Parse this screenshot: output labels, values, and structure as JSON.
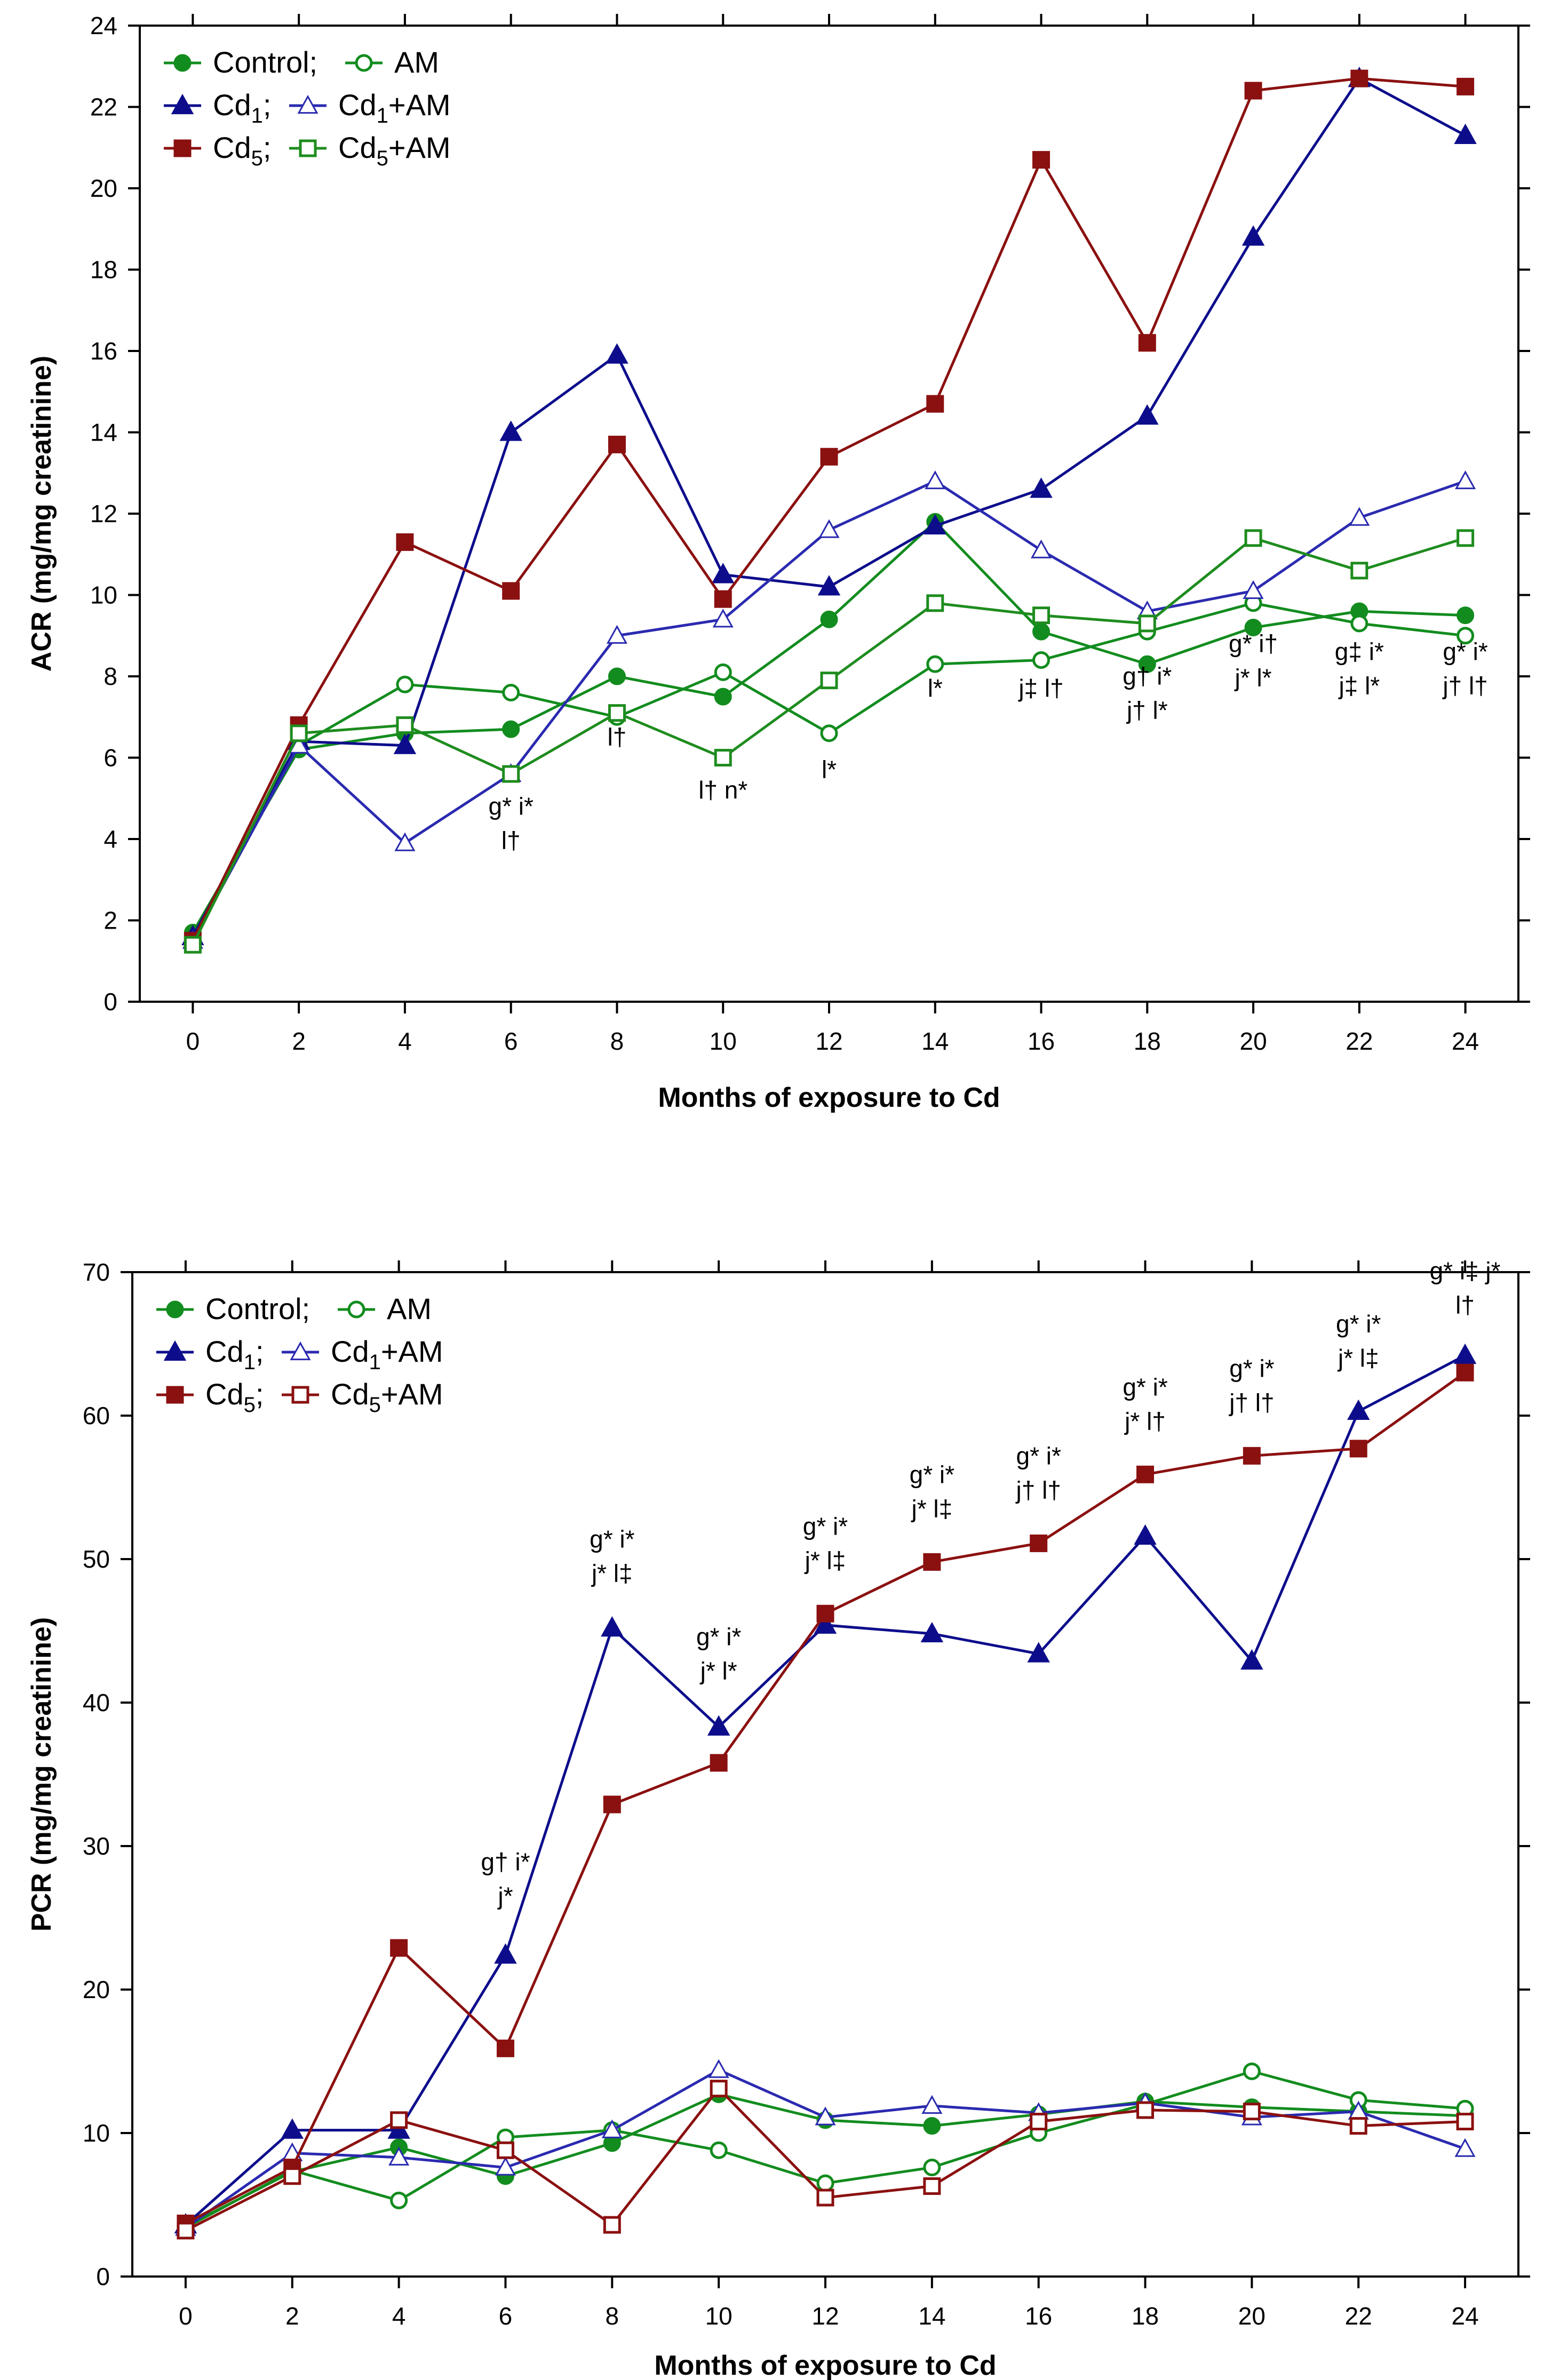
{
  "colors": {
    "control": "#128c1e",
    "am": "#128c1e",
    "cd1": "#0d0d8c",
    "cd1am": "#2a2ab0",
    "cd5": "#8b1010",
    "cd5am_top": "#1e8c1e",
    "cd5am_bottom": "#8b1010"
  },
  "chart_data": [
    {
      "type": "line",
      "panel": "top",
      "xlabel": "Months of exposure to Cd",
      "ylabel": "ACR (mg/mg creatinine)",
      "ylim": [
        0,
        24
      ],
      "yticks": [
        0,
        2,
        4,
        6,
        8,
        10,
        12,
        14,
        16,
        18,
        20,
        22,
        24
      ],
      "xlim": [
        -1,
        25
      ],
      "x": [
        0,
        2,
        4,
        6,
        8,
        10,
        12,
        14,
        16,
        18,
        20,
        22,
        24
      ],
      "xtick_labels": [
        "0",
        "2",
        "4",
        "6",
        "8",
        "10",
        "12",
        "14",
        "16",
        "18",
        "20",
        "22",
        "24"
      ],
      "legend": {
        "row1": {
          "a": "Control;",
          "b": "AM"
        },
        "row2": {
          "a_base": "Cd",
          "a_sub": "1",
          "a_tail": ";",
          "b_base": "Cd",
          "b_sub": "1",
          "b_tail": "+AM"
        },
        "row3": {
          "a_base": "Cd",
          "a_sub": "5",
          "a_tail": ";",
          "b_base": "Cd",
          "b_sub": "5",
          "b_tail": "+AM"
        }
      },
      "series": [
        {
          "name": "Control",
          "marker": "circle-filled",
          "color_key": "control",
          "values": [
            1.7,
            6.2,
            6.6,
            6.7,
            8.0,
            7.5,
            9.4,
            11.8,
            9.1,
            8.3,
            9.2,
            9.6,
            9.5
          ]
        },
        {
          "name": "AM",
          "marker": "circle-open",
          "color_key": "am",
          "values": [
            1.6,
            6.3,
            7.8,
            7.6,
            7.0,
            8.1,
            6.6,
            8.3,
            8.4,
            9.1,
            9.8,
            9.3,
            9.0
          ]
        },
        {
          "name": "Cd1",
          "marker": "triangle-filled",
          "color_key": "cd1",
          "values": [
            1.6,
            6.4,
            6.3,
            14.0,
            15.9,
            10.5,
            10.2,
            11.7,
            12.6,
            14.4,
            18.8,
            22.7,
            21.3
          ]
        },
        {
          "name": "Cd1+AM",
          "marker": "triangle-open",
          "color_key": "cd1am",
          "values": [
            1.5,
            6.3,
            3.9,
            5.6,
            9.0,
            9.4,
            11.6,
            12.8,
            11.1,
            9.6,
            10.1,
            11.9,
            12.8
          ]
        },
        {
          "name": "Cd5",
          "marker": "square-filled",
          "color_key": "cd5",
          "values": [
            1.5,
            6.8,
            11.3,
            10.1,
            13.7,
            9.9,
            13.4,
            14.7,
            20.7,
            16.2,
            22.4,
            22.7,
            22.5
          ]
        },
        {
          "name": "Cd5+AM",
          "marker": "square-open",
          "color_key": "cd5am_top",
          "values": [
            1.4,
            6.6,
            6.8,
            5.6,
            7.1,
            6.0,
            7.9,
            9.8,
            9.5,
            9.3,
            11.4,
            10.6,
            11.4
          ]
        }
      ],
      "annotations": [
        {
          "x": 6,
          "y": 4.6,
          "lines": [
            "g* i*",
            "l†"
          ]
        },
        {
          "x": 8,
          "y": 6.3,
          "lines": [
            "l†"
          ]
        },
        {
          "x": 10,
          "y": 5.0,
          "lines": [
            "l† n*"
          ]
        },
        {
          "x": 12,
          "y": 5.5,
          "lines": [
            "l*"
          ]
        },
        {
          "x": 14,
          "y": 7.5,
          "lines": [
            "l*"
          ]
        },
        {
          "x": 16,
          "y": 7.5,
          "lines": [
            "j‡ l†"
          ]
        },
        {
          "x": 18,
          "y": 7.8,
          "lines": [
            "g† i*",
            "j† l*"
          ]
        },
        {
          "x": 20,
          "y": 8.6,
          "lines": [
            "g* i†",
            "j* l*"
          ]
        },
        {
          "x": 22,
          "y": 8.4,
          "lines": [
            "g‡ i*",
            "j‡ l*"
          ]
        },
        {
          "x": 24,
          "y": 8.4,
          "lines": [
            "g* i*",
            "j† l†"
          ]
        }
      ]
    },
    {
      "type": "line",
      "panel": "bottom",
      "xlabel": "Months of exposure to Cd",
      "ylabel": "PCR (mg/mg creatinine)",
      "ylim": [
        0,
        70
      ],
      "yticks": [
        0,
        10,
        20,
        30,
        40,
        50,
        60,
        70
      ],
      "xlim": [
        -1,
        25
      ],
      "x": [
        0,
        2,
        4,
        6,
        8,
        10,
        12,
        14,
        16,
        18,
        20,
        22,
        24
      ],
      "xtick_labels": [
        "0",
        "2",
        "4",
        "6",
        "8",
        "10",
        "12",
        "14",
        "16",
        "18",
        "20",
        "22",
        "24"
      ],
      "legend": {
        "row1": {
          "a": "Control;",
          "b": "AM"
        },
        "row2": {
          "a_base": "Cd",
          "a_sub": "1",
          "a_tail": ";",
          "b_base": "Cd",
          "b_sub": "1",
          "b_tail": "+AM"
        },
        "row3": {
          "a_base": "Cd",
          "a_sub": "5",
          "a_tail": ";",
          "b_base": "Cd",
          "b_sub": "5",
          "b_tail": "+AM"
        }
      },
      "series": [
        {
          "name": "Control",
          "marker": "circle-filled",
          "color_key": "control",
          "values": [
            3.5,
            7.3,
            9.0,
            7.0,
            9.3,
            12.7,
            10.9,
            10.5,
            11.3,
            12.2,
            11.8,
            11.5,
            11.2
          ]
        },
        {
          "name": "AM",
          "marker": "circle-open",
          "color_key": "am",
          "values": [
            3.4,
            7.4,
            5.3,
            9.7,
            10.2,
            8.8,
            6.5,
            7.6,
            10.0,
            12.0,
            14.3,
            12.3,
            11.7
          ]
        },
        {
          "name": "Cd1",
          "marker": "triangle-filled",
          "color_key": "cd1",
          "values": [
            3.6,
            10.2,
            10.2,
            22.4,
            45.2,
            38.3,
            45.4,
            44.8,
            43.4,
            51.6,
            42.9,
            60.3,
            64.2
          ]
        },
        {
          "name": "Cd1+AM",
          "marker": "triangle-open",
          "color_key": "cd1am",
          "values": [
            3.4,
            8.6,
            8.3,
            7.6,
            10.2,
            14.4,
            11.1,
            11.9,
            11.4,
            12.1,
            11.1,
            11.5,
            8.9
          ]
        },
        {
          "name": "Cd5",
          "marker": "square-filled",
          "color_key": "cd5",
          "values": [
            3.7,
            7.6,
            22.9,
            15.9,
            32.9,
            35.8,
            46.2,
            49.8,
            51.1,
            55.9,
            57.2,
            57.7,
            63.0
          ]
        },
        {
          "name": "Cd5+AM",
          "marker": "square-open",
          "color_key": "cd5am_bottom",
          "values": [
            3.2,
            7.0,
            10.9,
            8.8,
            3.6,
            13.1,
            5.5,
            6.3,
            10.8,
            11.6,
            11.5,
            10.5,
            10.8
          ]
        }
      ],
      "annotations": [
        {
          "x": 6,
          "y": 28.3,
          "lines": [
            "g† i*",
            "j*"
          ]
        },
        {
          "x": 8,
          "y": 50.8,
          "lines": [
            "g* i*",
            "j* l‡"
          ]
        },
        {
          "x": 10,
          "y": 44.0,
          "lines": [
            "g* i*",
            "j* l*"
          ]
        },
        {
          "x": 12,
          "y": 51.7,
          "lines": [
            "g* i*",
            "j* l‡"
          ]
        },
        {
          "x": 14,
          "y": 55.3,
          "lines": [
            "g* i*",
            "j* l‡"
          ]
        },
        {
          "x": 16,
          "y": 56.6,
          "lines": [
            "g* i*",
            "j† l†"
          ]
        },
        {
          "x": 18,
          "y": 61.4,
          "lines": [
            "g* i*",
            "j* l†"
          ]
        },
        {
          "x": 20,
          "y": 62.7,
          "lines": [
            "g* i*",
            "j† l†"
          ]
        },
        {
          "x": 22,
          "y": 65.8,
          "lines": [
            "g* i*",
            "j* l‡"
          ]
        },
        {
          "x": 24,
          "y": 69.5,
          "lines": [
            "g* i‡ j*",
            "l†"
          ]
        }
      ]
    }
  ]
}
